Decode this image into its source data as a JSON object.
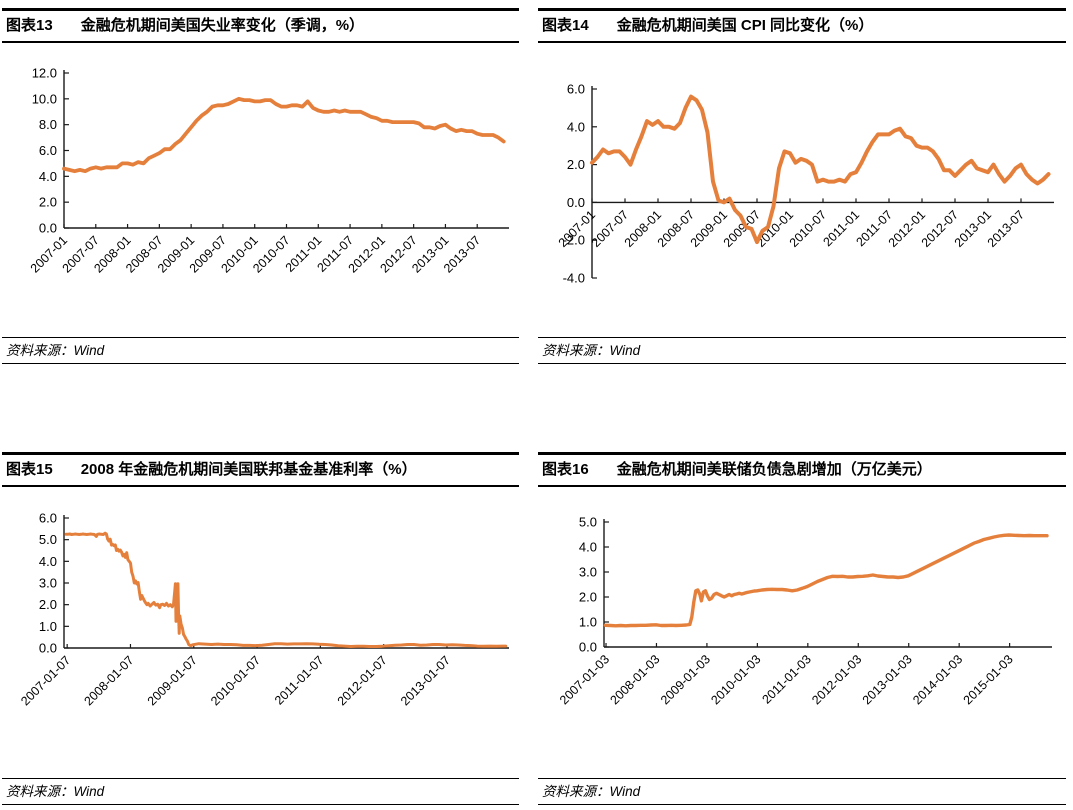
{
  "style": {
    "line_color": "#E5803C",
    "axis_color": "#1a1a1a",
    "text_color": "#000000",
    "background": "#ffffff"
  },
  "source": {
    "label": "资料来源：Wind"
  },
  "panels": [
    {
      "tag": "图表13",
      "title": "金融危机期间美国失业率变化（季调，%）"
    },
    {
      "tag": "图表14",
      "title": "金融危机期间美国 CPI 同比变化（%）"
    },
    {
      "tag": "图表15",
      "title": "2008 年金融危机期间美国联邦基金基准利率（%）"
    },
    {
      "tag": "图表16",
      "title": "金融危机期间美联储负债急剧增加（万亿美元）"
    }
  ],
  "chart_data": [
    {
      "type": "line",
      "name": "us-unemployment-rate",
      "title": "金融危机期间美国失业率变化（季调，%）",
      "legend": "none",
      "grid": false,
      "ylim": [
        0,
        12
      ],
      "ytick_values": [
        12,
        10,
        8,
        6,
        4,
        2,
        0
      ],
      "ytick_labels": [
        "12.0",
        "10.0",
        "8.0",
        "6.0",
        "4.0",
        "2.0",
        "0.0"
      ],
      "xlim": [
        0,
        84
      ],
      "axis_y": 0,
      "line_width": 3.8,
      "x": "index",
      "xtick_values": [
        0,
        6,
        12,
        18,
        24,
        30,
        36,
        42,
        48,
        54,
        60,
        66,
        72,
        78
      ],
      "xtick_labels": [
        "2007-01",
        "2007-07",
        "2008-01",
        "2008-07",
        "2009-01",
        "2009-07",
        "2010-01",
        "2010-07",
        "2011-01",
        "2011-07",
        "2012-01",
        "2012-07",
        "2013-01",
        "2013-07"
      ],
      "values": [
        4.6,
        4.5,
        4.4,
        4.5,
        4.4,
        4.6,
        4.7,
        4.6,
        4.7,
        4.7,
        4.7,
        5.0,
        5.0,
        4.9,
        5.1,
        5.0,
        5.4,
        5.6,
        5.8,
        6.1,
        6.1,
        6.5,
        6.8,
        7.3,
        7.8,
        8.3,
        8.7,
        9.0,
        9.4,
        9.5,
        9.5,
        9.6,
        9.8,
        10.0,
        9.9,
        9.9,
        9.8,
        9.8,
        9.9,
        9.9,
        9.6,
        9.4,
        9.4,
        9.5,
        9.5,
        9.4,
        9.8,
        9.3,
        9.1,
        9.0,
        9.0,
        9.1,
        9.0,
        9.1,
        9.0,
        9.0,
        9.0,
        8.8,
        8.6,
        8.5,
        8.3,
        8.3,
        8.2,
        8.2,
        8.2,
        8.2,
        8.2,
        8.1,
        7.8,
        7.8,
        7.7,
        7.9,
        8.0,
        7.7,
        7.5,
        7.6,
        7.5,
        7.5,
        7.3,
        7.2,
        7.2,
        7.2,
        7.0,
        6.7
      ]
    },
    {
      "type": "line",
      "name": "us-cpi-yoy",
      "title": "金融危机期间美国 CPI 同比变化（%）",
      "legend": "none",
      "grid": false,
      "ylim": [
        -4,
        6
      ],
      "ytick_values": [
        6,
        4,
        2,
        0,
        -2,
        -4
      ],
      "ytick_labels": [
        "6.0",
        "4.0",
        "2.0",
        "0.0",
        "-2.0",
        "-4.0"
      ],
      "xlim": [
        0,
        84
      ],
      "axis_y": 0,
      "line_width": 4,
      "x": "index",
      "xtick_values": [
        0,
        6,
        12,
        18,
        24,
        30,
        36,
        42,
        48,
        54,
        60,
        66,
        72,
        78
      ],
      "xtick_labels": [
        "2007-01",
        "2007-07",
        "2008-01",
        "2008-07",
        "2009-01",
        "2009-07",
        "2010-01",
        "2010-07",
        "2011-01",
        "2011-07",
        "2012-01",
        "2012-07",
        "2013-01",
        "2013-07"
      ],
      "values": [
        2.1,
        2.4,
        2.8,
        2.6,
        2.7,
        2.7,
        2.4,
        2.0,
        2.8,
        3.5,
        4.3,
        4.1,
        4.3,
        4.0,
        4.0,
        3.9,
        4.2,
        5.0,
        5.6,
        5.4,
        4.9,
        3.7,
        1.1,
        0.1,
        0.0,
        0.2,
        -0.4,
        -0.7,
        -1.3,
        -1.4,
        -2.1,
        -1.5,
        -1.3,
        -0.2,
        1.8,
        2.7,
        2.6,
        2.1,
        2.3,
        2.2,
        2.0,
        1.1,
        1.2,
        1.1,
        1.1,
        1.2,
        1.1,
        1.5,
        1.6,
        2.1,
        2.7,
        3.2,
        3.6,
        3.6,
        3.6,
        3.8,
        3.9,
        3.5,
        3.4,
        3.0,
        2.9,
        2.9,
        2.7,
        2.3,
        1.7,
        1.7,
        1.4,
        1.7,
        2.0,
        2.2,
        1.8,
        1.7,
        1.6,
        2.0,
        1.5,
        1.1,
        1.4,
        1.8,
        2.0,
        1.5,
        1.2,
        1.0,
        1.2,
        1.5
      ]
    },
    {
      "type": "line",
      "name": "us-fed-funds-rate",
      "title": "2008 年金融危机期间美国联邦基金基准利率（%）",
      "legend": "none",
      "grid": false,
      "ylim": [
        0,
        6
      ],
      "ytick_values": [
        6,
        5,
        4,
        3,
        2,
        1,
        0
      ],
      "ytick_labels": [
        "6.0",
        "5.0",
        "4.0",
        "3.0",
        "2.0",
        "1.0",
        "0.0"
      ],
      "xlim": [
        2006.97,
        2014.0
      ],
      "axis_y": 0,
      "line_width": 3,
      "xtick_values": [
        2007.02,
        2008.02,
        2009.02,
        2010.02,
        2011.02,
        2012.02,
        2013.02
      ],
      "xtick_labels": [
        "2007-01-07",
        "2008-01-07",
        "2009-01-07",
        "2010-01-07",
        "2011-01-07",
        "2012-01-07",
        "2013-01-07"
      ],
      "x": [
        2007.0,
        2007.03,
        2007.06,
        2007.09,
        2007.12,
        2007.15,
        2007.18,
        2007.21,
        2007.24,
        2007.27,
        2007.3,
        2007.33,
        2007.36,
        2007.39,
        2007.42,
        2007.45,
        2007.48,
        2007.5,
        2007.53,
        2007.56,
        2007.59,
        2007.62,
        2007.64,
        2007.66,
        2007.68,
        2007.7,
        2007.72,
        2007.74,
        2007.76,
        2007.78,
        2007.8,
        2007.82,
        2007.84,
        2007.86,
        2007.88,
        2007.9,
        2007.92,
        2007.94,
        2007.96,
        2007.98,
        2008.0,
        2008.02,
        2008.04,
        2008.06,
        2008.08,
        2008.1,
        2008.12,
        2008.14,
        2008.16,
        2008.18,
        2008.2,
        2008.22,
        2008.24,
        2008.26,
        2008.28,
        2008.3,
        2008.33,
        2008.36,
        2008.39,
        2008.42,
        2008.45,
        2008.48,
        2008.5,
        2008.53,
        2008.56,
        2008.59,
        2008.62,
        2008.65,
        2008.68,
        2008.7,
        2008.72,
        2008.73,
        2008.74,
        2008.75,
        2008.76,
        2008.77,
        2008.78,
        2008.79,
        2008.8,
        2008.82,
        2008.84,
        2008.86,
        2008.88,
        2008.9,
        2008.92,
        2008.94,
        2008.96,
        2008.98,
        2009.0,
        2009.1,
        2009.2,
        2009.3,
        2009.4,
        2009.5,
        2009.6,
        2009.7,
        2009.8,
        2009.9,
        2010.0,
        2010.1,
        2010.2,
        2010.3,
        2010.4,
        2010.5,
        2010.6,
        2010.7,
        2010.8,
        2010.9,
        2011.0,
        2011.1,
        2011.2,
        2011.3,
        2011.4,
        2011.5,
        2011.6,
        2011.7,
        2011.8,
        2011.9,
        2012.0,
        2012.1,
        2012.2,
        2012.3,
        2012.4,
        2012.5,
        2012.6,
        2012.7,
        2012.8,
        2012.9,
        2013.0,
        2013.1,
        2013.2,
        2013.3,
        2013.4,
        2013.5,
        2013.6,
        2013.7,
        2013.8,
        2013.9,
        2013.95
      ],
      "values": [
        5.25,
        5.25,
        5.26,
        5.24,
        5.25,
        5.26,
        5.25,
        5.24,
        5.25,
        5.26,
        5.25,
        5.24,
        5.25,
        5.26,
        5.25,
        5.24,
        5.15,
        5.25,
        5.26,
        5.25,
        5.24,
        5.3,
        5.26,
        5.02,
        4.94,
        5.02,
        4.75,
        4.78,
        4.72,
        4.76,
        4.5,
        4.55,
        4.47,
        4.52,
        4.42,
        4.25,
        4.32,
        4.18,
        4.4,
        4.08,
        4.0,
        3.92,
        3.5,
        3.32,
        3.0,
        3.1,
        2.96,
        3.02,
        2.62,
        2.25,
        2.42,
        2.3,
        2.18,
        2.08,
        2.0,
        2.06,
        1.94,
        2.02,
        2.1,
        1.98,
        2.02,
        1.86,
        2.0,
        2.02,
        1.96,
        2.06,
        1.94,
        2.0,
        1.9,
        2.0,
        2.64,
        2.97,
        1.23,
        2.8,
        1.9,
        2.97,
        1.51,
        0.68,
        1.48,
        1.1,
        0.92,
        0.62,
        0.52,
        0.4,
        0.32,
        0.16,
        0.12,
        0.11,
        0.15,
        0.2,
        0.18,
        0.16,
        0.18,
        0.16,
        0.16,
        0.15,
        0.12,
        0.12,
        0.11,
        0.13,
        0.16,
        0.2,
        0.2,
        0.18,
        0.19,
        0.19,
        0.2,
        0.19,
        0.17,
        0.16,
        0.14,
        0.1,
        0.09,
        0.07,
        0.08,
        0.08,
        0.07,
        0.07,
        0.08,
        0.1,
        0.13,
        0.14,
        0.16,
        0.16,
        0.13,
        0.14,
        0.16,
        0.16,
        0.14,
        0.15,
        0.14,
        0.12,
        0.11,
        0.09,
        0.08,
        0.09,
        0.08,
        0.09,
        0.09
      ]
    },
    {
      "type": "line",
      "name": "fed-liabilities",
      "title": "金融危机期间美联储负债急剧增加（万亿美元）",
      "legend": "none",
      "grid": false,
      "ylim": [
        0,
        5
      ],
      "ytick_values": [
        5,
        4,
        3,
        2,
        1,
        0
      ],
      "ytick_labels": [
        "5.0",
        "4.0",
        "3.0",
        "2.0",
        "1.0",
        "0.0"
      ],
      "xlim": [
        2006.97,
        2015.85
      ],
      "axis_y": 0,
      "line_width": 3.4,
      "xtick_values": [
        2007.01,
        2008.01,
        2009.01,
        2010.01,
        2011.01,
        2012.01,
        2013.01,
        2014.01,
        2015.01
      ],
      "xtick_labels": [
        "2007-01-03",
        "2008-01-03",
        "2009-01-03",
        "2010-01-03",
        "2011-01-03",
        "2012-01-03",
        "2013-01-03",
        "2014-01-03",
        "2015-01-03"
      ],
      "x": [
        2007.0,
        2007.1,
        2007.2,
        2007.3,
        2007.4,
        2007.5,
        2007.6,
        2007.7,
        2007.8,
        2007.9,
        2008.0,
        2008.1,
        2008.2,
        2008.3,
        2008.4,
        2008.5,
        2008.6,
        2008.67,
        2008.71,
        2008.75,
        2008.79,
        2008.83,
        2008.87,
        2008.9,
        2008.94,
        2008.98,
        2009.02,
        2009.06,
        2009.1,
        2009.15,
        2009.2,
        2009.25,
        2009.3,
        2009.35,
        2009.4,
        2009.45,
        2009.5,
        2009.55,
        2009.6,
        2009.65,
        2009.7,
        2009.75,
        2009.8,
        2009.85,
        2009.9,
        2009.95,
        2010.0,
        2010.1,
        2010.2,
        2010.3,
        2010.4,
        2010.5,
        2010.6,
        2010.7,
        2010.8,
        2010.9,
        2011.0,
        2011.1,
        2011.2,
        2011.3,
        2011.4,
        2011.5,
        2011.6,
        2011.7,
        2011.8,
        2011.9,
        2012.0,
        2012.1,
        2012.2,
        2012.3,
        2012.4,
        2012.5,
        2012.6,
        2012.7,
        2012.8,
        2012.9,
        2013.0,
        2013.1,
        2013.2,
        2013.3,
        2013.4,
        2013.5,
        2013.6,
        2013.7,
        2013.8,
        2013.9,
        2014.0,
        2014.1,
        2014.2,
        2014.3,
        2014.4,
        2014.5,
        2014.6,
        2014.7,
        2014.8,
        2014.9,
        2015.0,
        2015.1,
        2015.2,
        2015.3,
        2015.4,
        2015.5,
        2015.6,
        2015.7,
        2015.75
      ],
      "values": [
        0.87,
        0.86,
        0.85,
        0.86,
        0.85,
        0.86,
        0.86,
        0.87,
        0.87,
        0.88,
        0.89,
        0.86,
        0.86,
        0.87,
        0.86,
        0.87,
        0.88,
        0.9,
        1.2,
        1.8,
        2.25,
        2.28,
        2.1,
        1.85,
        2.2,
        2.25,
        2.05,
        1.9,
        1.95,
        2.1,
        2.15,
        2.1,
        2.05,
        2.0,
        2.05,
        2.1,
        2.05,
        2.1,
        2.12,
        2.15,
        2.12,
        2.15,
        2.18,
        2.2,
        2.22,
        2.24,
        2.25,
        2.28,
        2.3,
        2.31,
        2.3,
        2.3,
        2.28,
        2.25,
        2.28,
        2.35,
        2.42,
        2.52,
        2.62,
        2.7,
        2.78,
        2.83,
        2.82,
        2.83,
        2.8,
        2.8,
        2.82,
        2.83,
        2.85,
        2.88,
        2.84,
        2.82,
        2.8,
        2.8,
        2.78,
        2.8,
        2.85,
        2.95,
        3.05,
        3.15,
        3.25,
        3.35,
        3.45,
        3.55,
        3.65,
        3.75,
        3.85,
        3.95,
        4.05,
        4.15,
        4.22,
        4.3,
        4.35,
        4.4,
        4.44,
        4.47,
        4.48,
        4.47,
        4.46,
        4.45,
        4.46,
        4.45,
        4.45,
        4.45,
        4.45
      ]
    }
  ]
}
